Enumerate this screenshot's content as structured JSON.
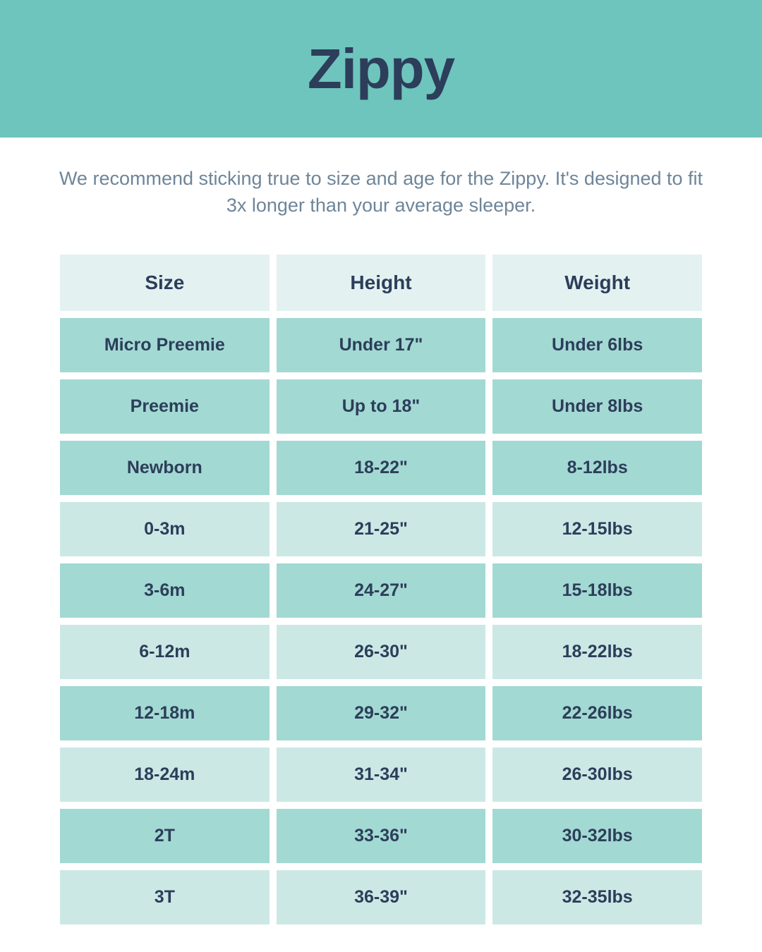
{
  "header": {
    "title": "Zippy"
  },
  "description": "We recommend sticking true to size and age for the Zippy. It's designed to fit 3x longer than your average sleeper.",
  "table": {
    "columns": [
      "Size",
      "Height",
      "Weight"
    ],
    "rows": [
      {
        "size": "Micro Preemie",
        "height": "Under 17\"",
        "weight": "Under 6lbs",
        "style": "dark"
      },
      {
        "size": "Preemie",
        "height": "Up to 18\"",
        "weight": "Under 8lbs",
        "style": "dark"
      },
      {
        "size": "Newborn",
        "height": "18-22\"",
        "weight": "8-12lbs",
        "style": "dark"
      },
      {
        "size": "0-3m",
        "height": "21-25\"",
        "weight": "12-15lbs",
        "style": "light"
      },
      {
        "size": "3-6m",
        "height": "24-27\"",
        "weight": "15-18lbs",
        "style": "dark"
      },
      {
        "size": "6-12m",
        "height": "26-30\"",
        "weight": "18-22lbs",
        "style": "light"
      },
      {
        "size": "12-18m",
        "height": "29-32\"",
        "weight": "22-26lbs",
        "style": "dark"
      },
      {
        "size": "18-24m",
        "height": "31-34\"",
        "weight": "26-30lbs",
        "style": "light"
      },
      {
        "size": "2T",
        "height": "33-36\"",
        "weight": "30-32lbs",
        "style": "dark"
      },
      {
        "size": "3T",
        "height": "36-39\"",
        "weight": "32-35lbs",
        "style": "light"
      }
    ],
    "colors": {
      "header_bg": "#e3f2f1",
      "row_dark_bg": "#a3d9d3",
      "row_light_bg": "#cce8e5",
      "text_color": "#2c3e5a",
      "banner_bg": "#6ec5bd",
      "description_color": "#6e8599"
    }
  }
}
